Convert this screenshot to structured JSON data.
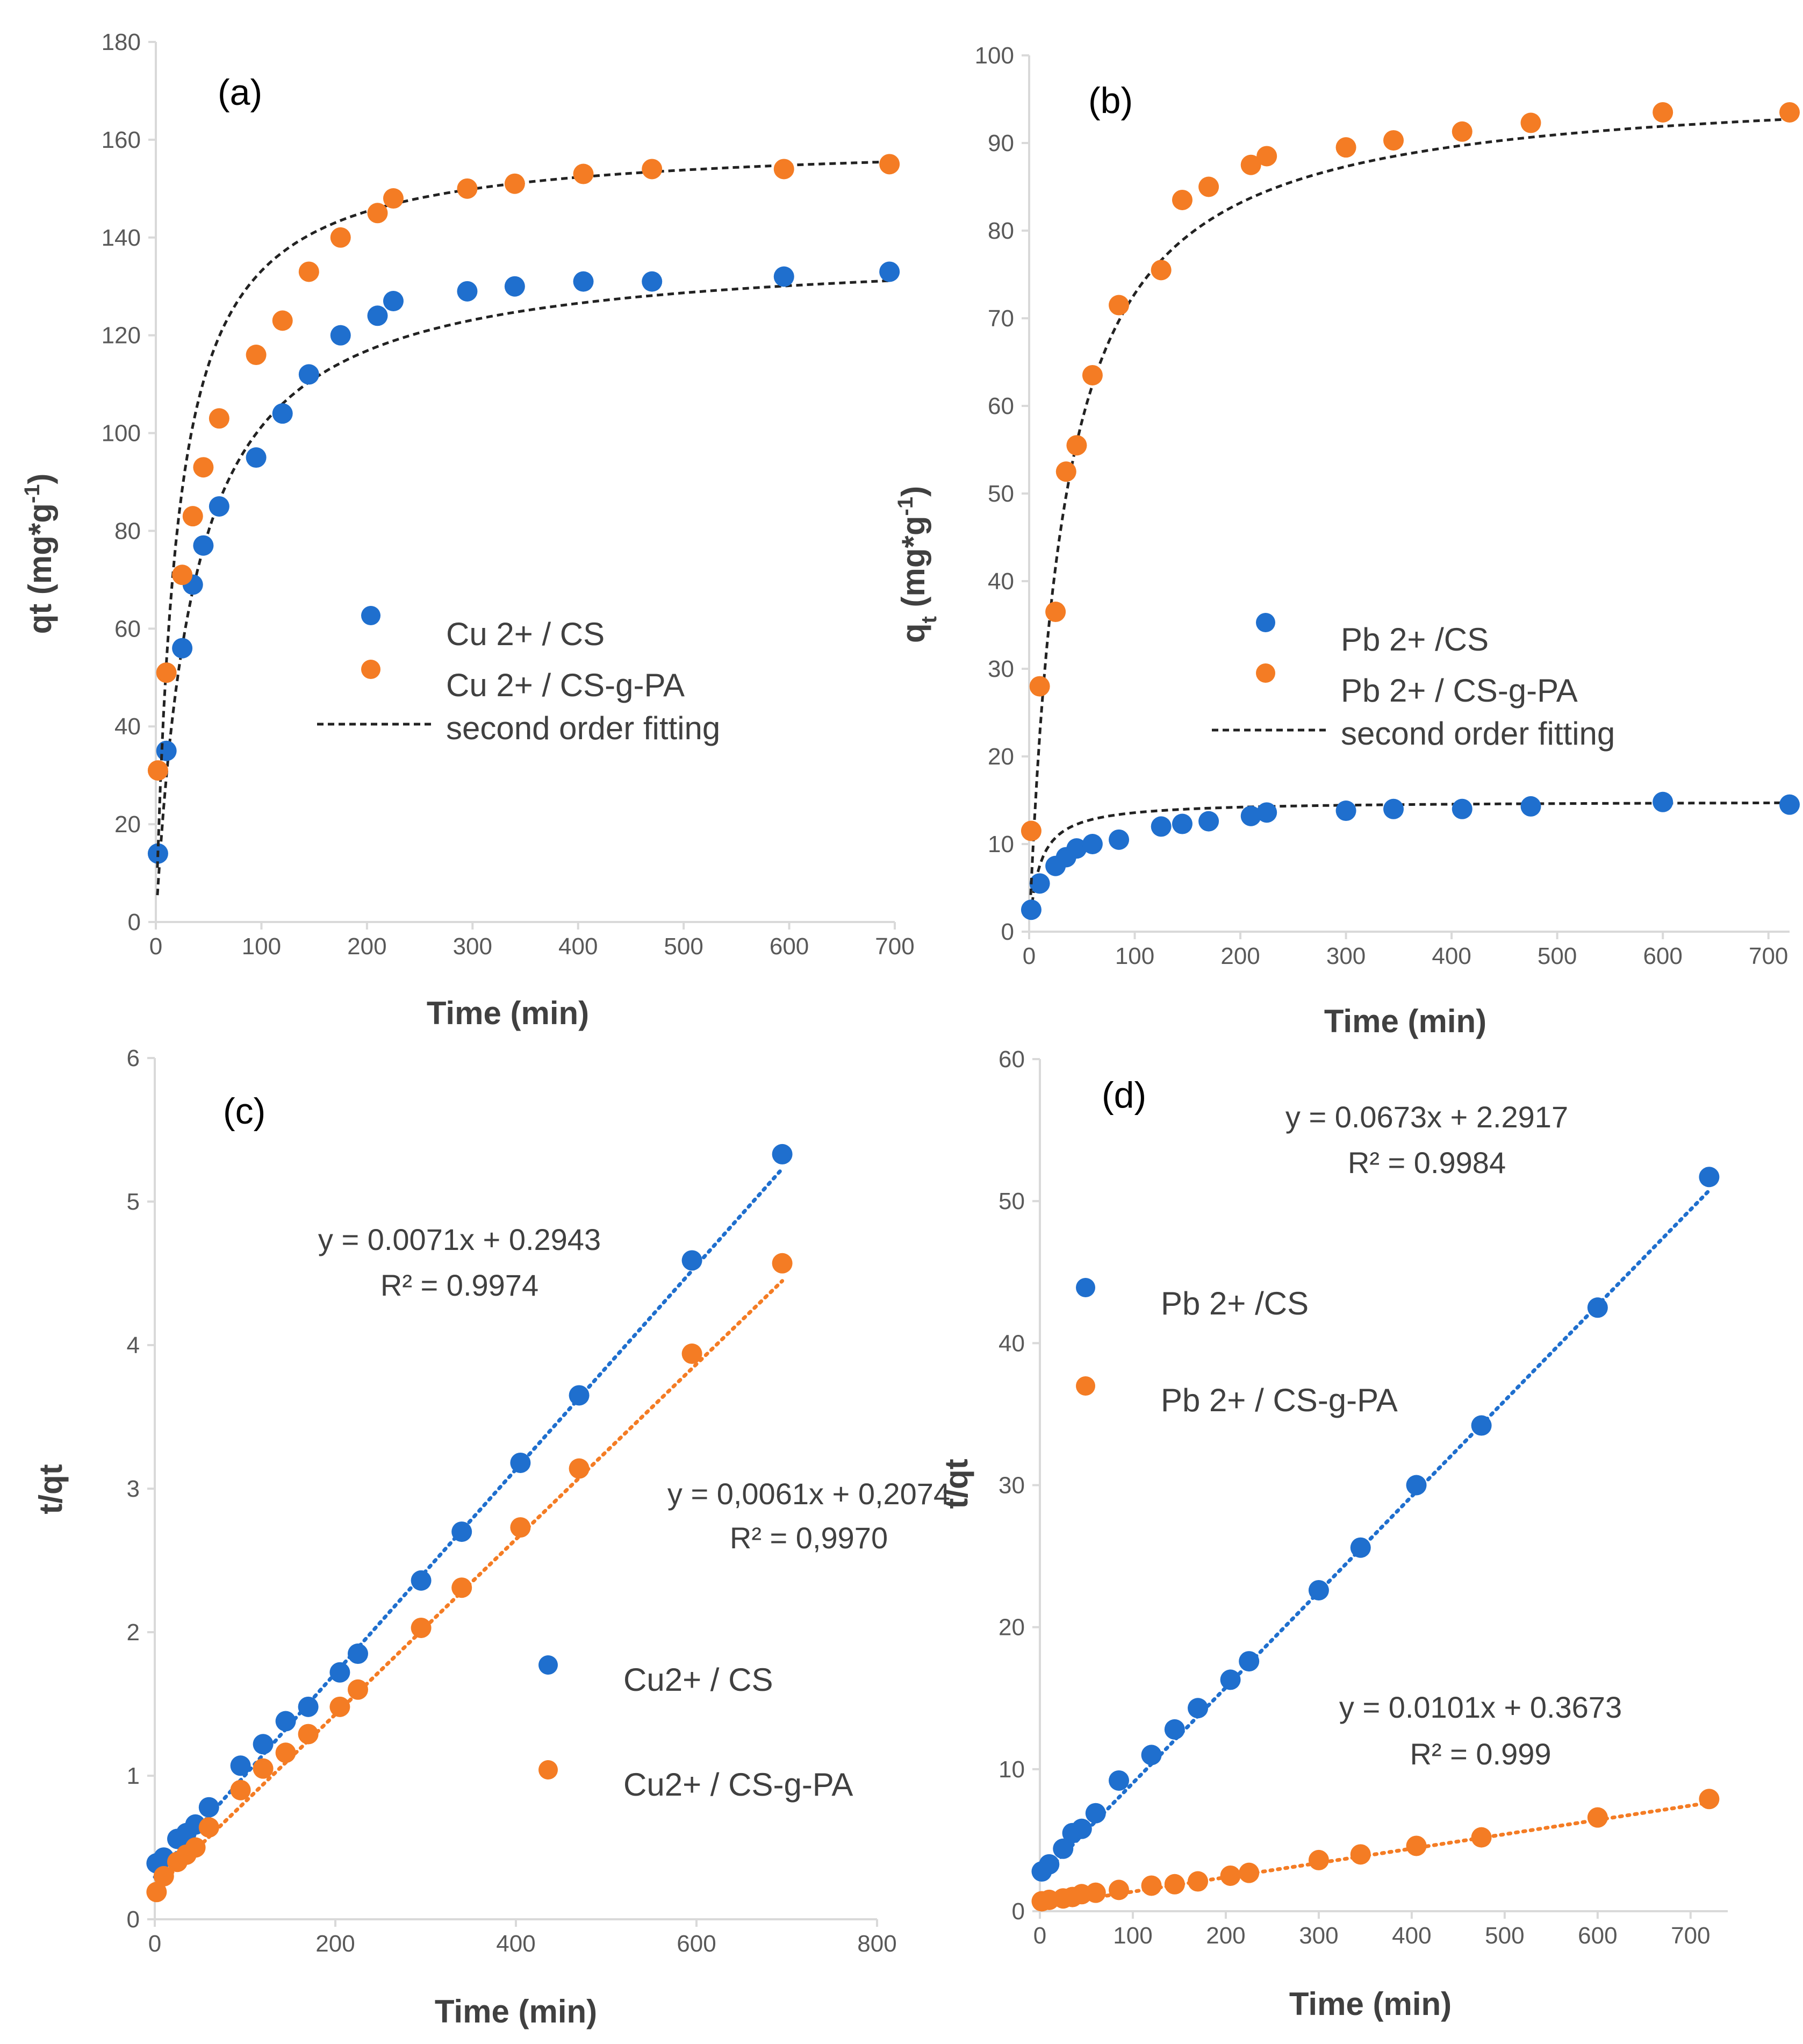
{
  "colors": {
    "blue": "#1f6fce",
    "orange": "#f47c24",
    "fit": "#222222",
    "axis": "#d9d9d9",
    "text": "#595959"
  },
  "chart_data": [
    {
      "id": "a",
      "type": "scatter",
      "title": "(a)",
      "xlabel": "Time (min)",
      "ylabel": "qt (mg*g-1)",
      "xlim": [
        0,
        700
      ],
      "ylim": [
        0,
        180
      ],
      "xticks": [
        0,
        100,
        200,
        300,
        400,
        500,
        600,
        700
      ],
      "yticks": [
        0,
        20,
        40,
        60,
        80,
        100,
        120,
        140,
        160,
        180
      ],
      "fit_label": "second order fitting",
      "series": [
        {
          "name": "Cu 2+ / CS",
          "color": "blue",
          "x": [
            2,
            10,
            25,
            35,
            45,
            60,
            95,
            120,
            145,
            175,
            210,
            225,
            295,
            340,
            405,
            470,
            595,
            695
          ],
          "y": [
            14,
            35,
            56,
            69,
            77,
            85,
            95,
            104,
            112,
            120,
            124,
            127,
            129,
            130,
            131,
            131,
            132,
            133
          ],
          "fit": {
            "qe": 138,
            "k": 0.0002
          }
        },
        {
          "name": "Cu 2+ / CS-g-PA",
          "color": "orange",
          "x": [
            2,
            10,
            25,
            35,
            45,
            60,
            95,
            120,
            145,
            175,
            210,
            225,
            295,
            340,
            405,
            470,
            595,
            695
          ],
          "y": [
            31,
            51,
            71,
            83,
            93,
            103,
            116,
            123,
            133,
            140,
            145,
            148,
            150,
            151,
            153,
            154,
            154,
            155
          ],
          "fit": {
            "qe": 160,
            "k": 0.00031
          }
        }
      ]
    },
    {
      "id": "b",
      "type": "scatter",
      "title": "(b)",
      "xlabel": "Time (min)",
      "ylabel": "qt (mg*g-1)",
      "xlim": [
        0,
        720
      ],
      "ylim": [
        0,
        100
      ],
      "xticks": [
        0,
        100,
        200,
        300,
        400,
        500,
        600,
        700
      ],
      "yticks": [
        0,
        10,
        20,
        30,
        40,
        50,
        60,
        70,
        80,
        90,
        100
      ],
      "fit_label": "second order fitting",
      "series": [
        {
          "name": "Pb 2+ /CS",
          "color": "blue",
          "x": [
            2,
            10,
            25,
            35,
            45,
            60,
            85,
            125,
            145,
            170,
            210,
            225,
            300,
            345,
            410,
            475,
            600,
            720
          ],
          "y": [
            2.5,
            5.5,
            7.5,
            8.5,
            9.5,
            10,
            10.5,
            12,
            12.3,
            12.6,
            13.2,
            13.6,
            13.8,
            14,
            14,
            14.3,
            14.8,
            14.5
          ],
          "fit": {
            "qe": 14.9,
            "k": 0.0069
          }
        },
        {
          "name": "Pb 2+ / CS-g-PA",
          "color": "orange",
          "x": [
            2,
            10,
            25,
            35,
            45,
            60,
            85,
            125,
            145,
            170,
            210,
            225,
            300,
            345,
            410,
            475,
            600,
            720
          ],
          "y": [
            11.5,
            28,
            36.5,
            52.5,
            55.5,
            63.5,
            71.5,
            75.5,
            83.5,
            85,
            87.5,
            88.5,
            89.5,
            90.3,
            91.3,
            92.3,
            93.5,
            93.5
          ],
          "fit": {
            "qe": 97,
            "k": 0.00031
          }
        }
      ]
    },
    {
      "id": "c",
      "type": "scatter",
      "title": "(c)",
      "xlabel": "Time (min)",
      "ylabel": "t/qt",
      "xlim": [
        0,
        800
      ],
      "ylim": [
        0,
        6
      ],
      "xticks": [
        0,
        200,
        400,
        600,
        800
      ],
      "yticks": [
        0,
        1,
        2,
        3,
        4,
        5,
        6
      ],
      "series": [
        {
          "name": "Cu2+ / CS",
          "color": "blue",
          "equation": "y = 0.0071x + 0.2943",
          "r2": "R² = 0.9974",
          "trend": {
            "slope": 0.0071,
            "intercept": 0.2943
          },
          "x": [
            2,
            10,
            25,
            35,
            45,
            60,
            95,
            120,
            145,
            170,
            205,
            225,
            295,
            340,
            405,
            470,
            595,
            695
          ],
          "y": [
            0.39,
            0.43,
            0.56,
            0.6,
            0.66,
            0.78,
            1.07,
            1.22,
            1.38,
            1.48,
            1.72,
            1.85,
            2.36,
            2.7,
            3.18,
            3.65,
            4.59,
            5.33
          ]
        },
        {
          "name": "Cu2+ / CS-g-PA",
          "color": "orange",
          "equation": "y = 0,0061x + 0,2074",
          "r2": "R² = 0,9970",
          "trend": {
            "slope": 0.0061,
            "intercept": 0.2074
          },
          "x": [
            2,
            10,
            25,
            35,
            45,
            60,
            95,
            120,
            145,
            170,
            205,
            225,
            295,
            340,
            405,
            470,
            595,
            695
          ],
          "y": [
            0.19,
            0.3,
            0.4,
            0.45,
            0.5,
            0.64,
            0.9,
            1.05,
            1.16,
            1.29,
            1.48,
            1.6,
            2.03,
            2.31,
            2.73,
            3.14,
            3.94,
            4.57
          ]
        }
      ]
    },
    {
      "id": "d",
      "type": "scatter",
      "title": "(d)",
      "xlabel": "Time (min)",
      "ylabel": "t/qt",
      "xlim": [
        0,
        740
      ],
      "ylim": [
        0,
        60
      ],
      "xticks": [
        0,
        100,
        200,
        300,
        400,
        500,
        600,
        700
      ],
      "yticks": [
        0,
        10,
        20,
        30,
        40,
        50,
        60
      ],
      "series": [
        {
          "name": "Pb 2+ /CS",
          "color": "blue",
          "equation": "y = 0.0673x + 2.2917",
          "r2": "R² = 0.9984",
          "trend": {
            "slope": 0.0673,
            "intercept": 2.2917
          },
          "x": [
            2,
            10,
            25,
            35,
            45,
            60,
            85,
            120,
            145,
            170,
            205,
            225,
            300,
            345,
            405,
            475,
            600,
            720
          ],
          "y": [
            2.8,
            3.3,
            4.4,
            5.5,
            5.8,
            6.9,
            9.2,
            11,
            12.8,
            14.3,
            16.3,
            17.6,
            22.6,
            25.6,
            30,
            34.2,
            42.5,
            51.7
          ]
        },
        {
          "name": "Pb 2+ / CS-g-PA",
          "color": "orange",
          "equation": "y = 0.0101x + 0.3673",
          "r2": "R² = 0.999",
          "trend": {
            "slope": 0.0101,
            "intercept": 0.3673
          },
          "x": [
            2,
            10,
            25,
            35,
            45,
            60,
            85,
            120,
            145,
            170,
            205,
            225,
            300,
            345,
            405,
            475,
            600,
            720
          ],
          "y": [
            0.7,
            0.8,
            0.9,
            1,
            1.2,
            1.3,
            1.5,
            1.8,
            1.9,
            2.1,
            2.5,
            2.7,
            3.6,
            4,
            4.6,
            5.2,
            6.6,
            7.9
          ]
        }
      ]
    }
  ]
}
